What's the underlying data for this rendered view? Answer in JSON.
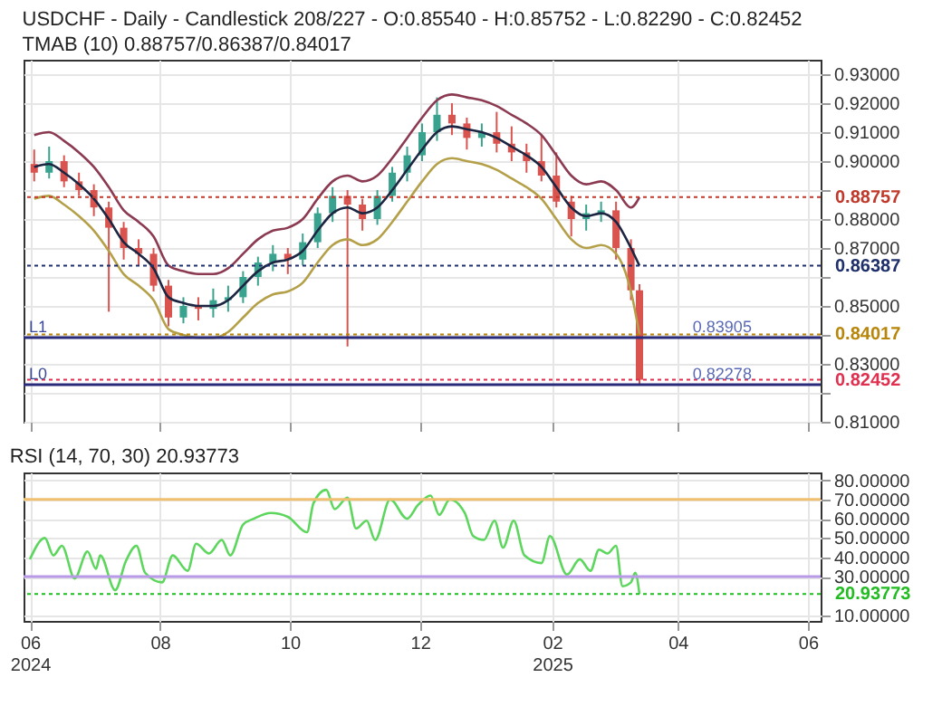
{
  "chart_data": [
    {
      "type": "candlestick",
      "title": "USDCHF - Daily - Candlestick    208/227 - O:0.85540 - H:0.85752 - L:0.82290 - C:0.82452",
      "subtitle": "TMAB (10)    0.88757/0.86387/0.84017",
      "x": [
        "2024-06-03",
        "2024-06-10",
        "2024-06-17",
        "2024-06-24",
        "2024-07-01",
        "2024-07-08",
        "2024-07-15",
        "2024-07-22",
        "2024-07-29",
        "2024-08-05",
        "2024-08-12",
        "2024-08-19",
        "2024-08-26",
        "2024-09-02",
        "2024-09-09",
        "2024-09-16",
        "2024-09-23",
        "2024-09-30",
        "2024-10-07",
        "2024-10-14",
        "2024-10-21",
        "2024-10-28",
        "2024-11-04",
        "2024-11-11",
        "2024-11-18",
        "2024-11-25",
        "2024-12-02",
        "2024-12-09",
        "2024-12-16",
        "2024-12-23",
        "2024-12-30",
        "2025-01-06",
        "2025-01-13",
        "2025-01-20",
        "2025-01-27",
        "2025-02-03",
        "2025-02-10",
        "2025-02-17",
        "2025-02-24",
        "2025-03-03",
        "2025-03-10",
        "2025-03-14"
      ],
      "ohlc": [
        [
          0.899,
          0.904,
          0.893,
          0.896
        ],
        [
          0.896,
          0.905,
          0.894,
          0.9
        ],
        [
          0.9,
          0.902,
          0.891,
          0.893
        ],
        [
          0.893,
          0.896,
          0.888,
          0.89
        ],
        [
          0.89,
          0.892,
          0.881,
          0.884
        ],
        [
          0.884,
          0.886,
          0.848,
          0.877
        ],
        [
          0.877,
          0.879,
          0.866,
          0.87
        ],
        [
          0.87,
          0.873,
          0.864,
          0.868
        ],
        [
          0.868,
          0.87,
          0.855,
          0.857
        ],
        [
          0.857,
          0.859,
          0.843,
          0.846
        ],
        [
          0.846,
          0.853,
          0.844,
          0.85
        ],
        [
          0.85,
          0.853,
          0.845,
          0.849
        ],
        [
          0.849,
          0.856,
          0.846,
          0.852
        ],
        [
          0.852,
          0.857,
          0.848,
          0.853
        ],
        [
          0.853,
          0.862,
          0.851,
          0.86
        ],
        [
          0.86,
          0.867,
          0.857,
          0.865
        ],
        [
          0.865,
          0.871,
          0.862,
          0.868
        ],
        [
          0.868,
          0.87,
          0.861,
          0.866
        ],
        [
          0.866,
          0.875,
          0.864,
          0.872
        ],
        [
          0.872,
          0.884,
          0.87,
          0.882
        ],
        [
          0.882,
          0.891,
          0.879,
          0.888
        ],
        [
          0.888,
          0.89,
          0.836,
          0.885
        ],
        [
          0.885,
          0.887,
          0.876,
          0.88
        ],
        [
          0.88,
          0.89,
          0.878,
          0.888
        ],
        [
          0.888,
          0.898,
          0.886,
          0.896
        ],
        [
          0.896,
          0.905,
          0.893,
          0.902
        ],
        [
          0.902,
          0.913,
          0.9,
          0.91
        ],
        [
          0.91,
          0.922,
          0.907,
          0.916
        ],
        [
          0.916,
          0.92,
          0.909,
          0.913
        ],
        [
          0.913,
          0.915,
          0.904,
          0.908
        ],
        [
          0.908,
          0.913,
          0.905,
          0.91
        ],
        [
          0.91,
          0.917,
          0.903,
          0.906
        ],
        [
          0.906,
          0.912,
          0.9,
          0.903
        ],
        [
          0.903,
          0.906,
          0.896,
          0.9
        ],
        [
          0.9,
          0.909,
          0.893,
          0.895
        ],
        [
          0.895,
          0.903,
          0.884,
          0.886
        ],
        [
          0.886,
          0.888,
          0.874,
          0.88
        ],
        [
          0.88,
          0.885,
          0.876,
          0.882
        ],
        [
          0.882,
          0.886,
          0.879,
          0.883
        ],
        [
          0.883,
          0.886,
          0.866,
          0.87
        ],
        [
          0.87,
          0.873,
          0.852,
          0.8554
        ],
        [
          0.8554,
          0.85752,
          0.8229,
          0.82452
        ]
      ],
      "colors": [
        "#d9534f",
        "#3aa38f",
        "#d9534f",
        "#d9534f",
        "#d9534f",
        "#d9534f",
        "#d9534f",
        "#d9534f",
        "#d9534f",
        "#d9534f",
        "#3aa38f",
        "#d9534f",
        "#3aa38f",
        "#3aa38f",
        "#3aa38f",
        "#3aa38f",
        "#3aa38f",
        "#d9534f",
        "#3aa38f",
        "#3aa38f",
        "#3aa38f",
        "#d9534f",
        "#d9534f",
        "#3aa38f",
        "#3aa38f",
        "#3aa38f",
        "#3aa38f",
        "#3aa38f",
        "#d9534f",
        "#d9534f",
        "#3aa38f",
        "#d9534f",
        "#d9534f",
        "#d9534f",
        "#d9534f",
        "#d9534f",
        "#d9534f",
        "#3aa38f",
        "#3aa38f",
        "#d9534f",
        "#d9534f",
        "#d9534f"
      ],
      "series": [
        {
          "type": "line",
          "color": "#8b3a52",
          "values": [
            0.909,
            0.91,
            0.907,
            0.903,
            0.898,
            0.891,
            0.883,
            0.879,
            0.874,
            0.864,
            0.862,
            0.861,
            0.861,
            0.863,
            0.868,
            0.873,
            0.876,
            0.877,
            0.88,
            0.887,
            0.893,
            0.895,
            0.893,
            0.895,
            0.901,
            0.908,
            0.915,
            0.921,
            0.923,
            0.922,
            0.921,
            0.919,
            0.916,
            0.913,
            0.909,
            0.902,
            0.895,
            0.892,
            0.893,
            0.89,
            0.884,
            0.88757
          ]
        },
        {
          "type": "line",
          "color": "#1c2541",
          "values": [
            0.898,
            0.899,
            0.896,
            0.892,
            0.887,
            0.88,
            0.872,
            0.868,
            0.863,
            0.853,
            0.851,
            0.85,
            0.85,
            0.852,
            0.857,
            0.862,
            0.865,
            0.866,
            0.869,
            0.876,
            0.882,
            0.884,
            0.882,
            0.884,
            0.89,
            0.897,
            0.904,
            0.91,
            0.912,
            0.911,
            0.91,
            0.908,
            0.905,
            0.902,
            0.898,
            0.891,
            0.884,
            0.881,
            0.882,
            0.879,
            0.87,
            0.86387
          ]
        },
        {
          "type": "line",
          "color": "#b5a04a",
          "values": [
            0.887,
            0.888,
            0.885,
            0.881,
            0.876,
            0.869,
            0.861,
            0.857,
            0.852,
            0.842,
            0.84,
            0.839,
            0.839,
            0.841,
            0.846,
            0.851,
            0.854,
            0.855,
            0.858,
            0.865,
            0.871,
            0.873,
            0.871,
            0.873,
            0.879,
            0.886,
            0.893,
            0.899,
            0.901,
            0.9,
            0.899,
            0.897,
            0.894,
            0.891,
            0.887,
            0.88,
            0.873,
            0.87,
            0.871,
            0.868,
            0.855,
            0.84017
          ]
        }
      ],
      "xlim": [
        "2024-05-29",
        "2025-06-07"
      ],
      "xticks": [
        {
          "value": "2024-06-01",
          "label": null
        },
        {
          "value": "2024-08-01",
          "label": null
        },
        {
          "value": "2024-10-01",
          "label": null
        },
        {
          "value": "2024-12-01",
          "label": null
        },
        {
          "value": "2025-02-01",
          "label": null
        },
        {
          "value": "2025-04-01",
          "label": null
        },
        {
          "value": "2025-06-01",
          "label": null
        }
      ],
      "ylim": [
        0.81,
        0.935
      ],
      "yticks": [
        {
          "value": 0.81,
          "label": "0.81000"
        },
        {
          "value": 0.82,
          "label": null
        },
        {
          "value": 0.83,
          "label": "0.83000"
        },
        {
          "value": 0.84,
          "label": null
        },
        {
          "value": 0.85,
          "label": "0.85000"
        },
        {
          "value": 0.86,
          "label": null
        },
        {
          "value": 0.87,
          "label": "0.87000"
        },
        {
          "value": 0.88,
          "label": "0.88000"
        },
        {
          "value": 0.89,
          "label": null
        },
        {
          "value": 0.9,
          "label": "0.90000"
        },
        {
          "value": 0.91,
          "label": "0.91000"
        },
        {
          "value": 0.92,
          "label": "0.92000"
        },
        {
          "value": 0.93,
          "label": "0.93000"
        }
      ],
      "grid": true,
      "tick_labels": "y",
      "ref_lines": [
        {
          "axis": "y",
          "value": 0.88757,
          "label": "0.88757",
          "color": "#c0392b",
          "line_style": "dotted"
        },
        {
          "axis": "y",
          "value": 0.86387,
          "label": "0.86387",
          "color": "#1f2f6b",
          "line_style": "dotted"
        },
        {
          "axis": "y",
          "value": 0.84017,
          "label": "0.84017",
          "color": "#b8860b",
          "line_style": "dotted"
        },
        {
          "axis": "y",
          "value": 0.82452,
          "label": "0.82452",
          "color": "#e03050",
          "line_style": "dotted"
        },
        {
          "axis": "y",
          "value": 0.83905,
          "label": "L1",
          "color": "#2a2a7a",
          "line_style": "solid"
        },
        {
          "axis": "y",
          "value": 0.82278,
          "label": "L0",
          "color": "#2a2a7a",
          "line_style": "solid"
        }
      ],
      "annotations": [
        {
          "text": "0.83905",
          "x": "2025-04-08",
          "y": 0.83905
        },
        {
          "text": "0.82278",
          "x": "2025-04-08",
          "y": 0.82278
        }
      ]
    },
    {
      "type": "line",
      "title": "RSI (14, 70, 30)    20.93773",
      "x": [
        "2024-06-01",
        "2024-06-08",
        "2024-06-12",
        "2024-06-16",
        "2024-06-22",
        "2024-06-28",
        "2024-07-02",
        "2024-07-04",
        "2024-07-11",
        "2024-07-16",
        "2024-07-21",
        "2024-07-25",
        "2024-08-02",
        "2024-08-07",
        "2024-08-14",
        "2024-08-18",
        "2024-08-24",
        "2024-08-30",
        "2024-09-03",
        "2024-09-09",
        "2024-09-14",
        "2024-09-22",
        "2024-09-30",
        "2024-10-09",
        "2024-10-12",
        "2024-10-18",
        "2024-10-22",
        "2024-10-28",
        "2024-11-01",
        "2024-11-06",
        "2024-11-10",
        "2024-11-17",
        "2024-11-25",
        "2024-11-30",
        "2024-12-06",
        "2024-12-10",
        "2024-12-15",
        "2024-12-22",
        "2024-12-26",
        "2024-12-31",
        "2025-01-05",
        "2025-01-09",
        "2025-01-14",
        "2025-01-19",
        "2025-01-27",
        "2025-01-31",
        "2025-02-08",
        "2025-02-14",
        "2025-02-19",
        "2025-02-23",
        "2025-02-27",
        "2025-03-03",
        "2025-03-06",
        "2025-03-10",
        "2025-03-12",
        "2025-03-14"
      ],
      "series": [
        {
          "color": "#5cd65c",
          "values": [
            39,
            50,
            41,
            46,
            29,
            43,
            34,
            41,
            23,
            38,
            46,
            32,
            27,
            41,
            33,
            47,
            42,
            49,
            41,
            57,
            60,
            63,
            61,
            53,
            68,
            75,
            65,
            71,
            55,
            59,
            49,
            70,
            60,
            67,
            72,
            62,
            70,
            63,
            51,
            49,
            59,
            45,
            59,
            41,
            37,
            51,
            31,
            39,
            33,
            44,
            42,
            46,
            25,
            27,
            32,
            20.93773
          ]
        }
      ],
      "xlim": [
        "2024-05-29",
        "2025-06-07"
      ],
      "xticks": [
        {
          "value": "2024-06-01",
          "label": "06\n2024"
        },
        {
          "value": "2024-08-01",
          "label": "08"
        },
        {
          "value": "2024-10-01",
          "label": "10"
        },
        {
          "value": "2024-12-01",
          "label": "12"
        },
        {
          "value": "2025-02-01",
          "label": "02\n2025"
        },
        {
          "value": "2025-04-01",
          "label": "04"
        },
        {
          "value": "2025-06-01",
          "label": "06"
        }
      ],
      "ylim": [
        7,
        84
      ],
      "yticks": [
        {
          "value": 10,
          "label": "10.00000"
        },
        {
          "value": 30,
          "label": "30.00000"
        },
        {
          "value": 40,
          "label": "40.00000"
        },
        {
          "value": 50,
          "label": "50.00000"
        },
        {
          "value": 60,
          "label": "60.00000"
        },
        {
          "value": 70,
          "label": "70.00000"
        },
        {
          "value": 80,
          "label": "80.00000"
        }
      ],
      "grid": true,
      "ref_lines": [
        {
          "axis": "y",
          "value": 70,
          "color": "#f0c070",
          "line_style": "solid"
        },
        {
          "axis": "y",
          "value": 30,
          "color": "#b89ae8",
          "line_style": "solid"
        },
        {
          "axis": "y",
          "value": 20.93773,
          "label": "20.93773",
          "color": "#22bb22",
          "line_style": "dotted"
        }
      ]
    }
  ]
}
